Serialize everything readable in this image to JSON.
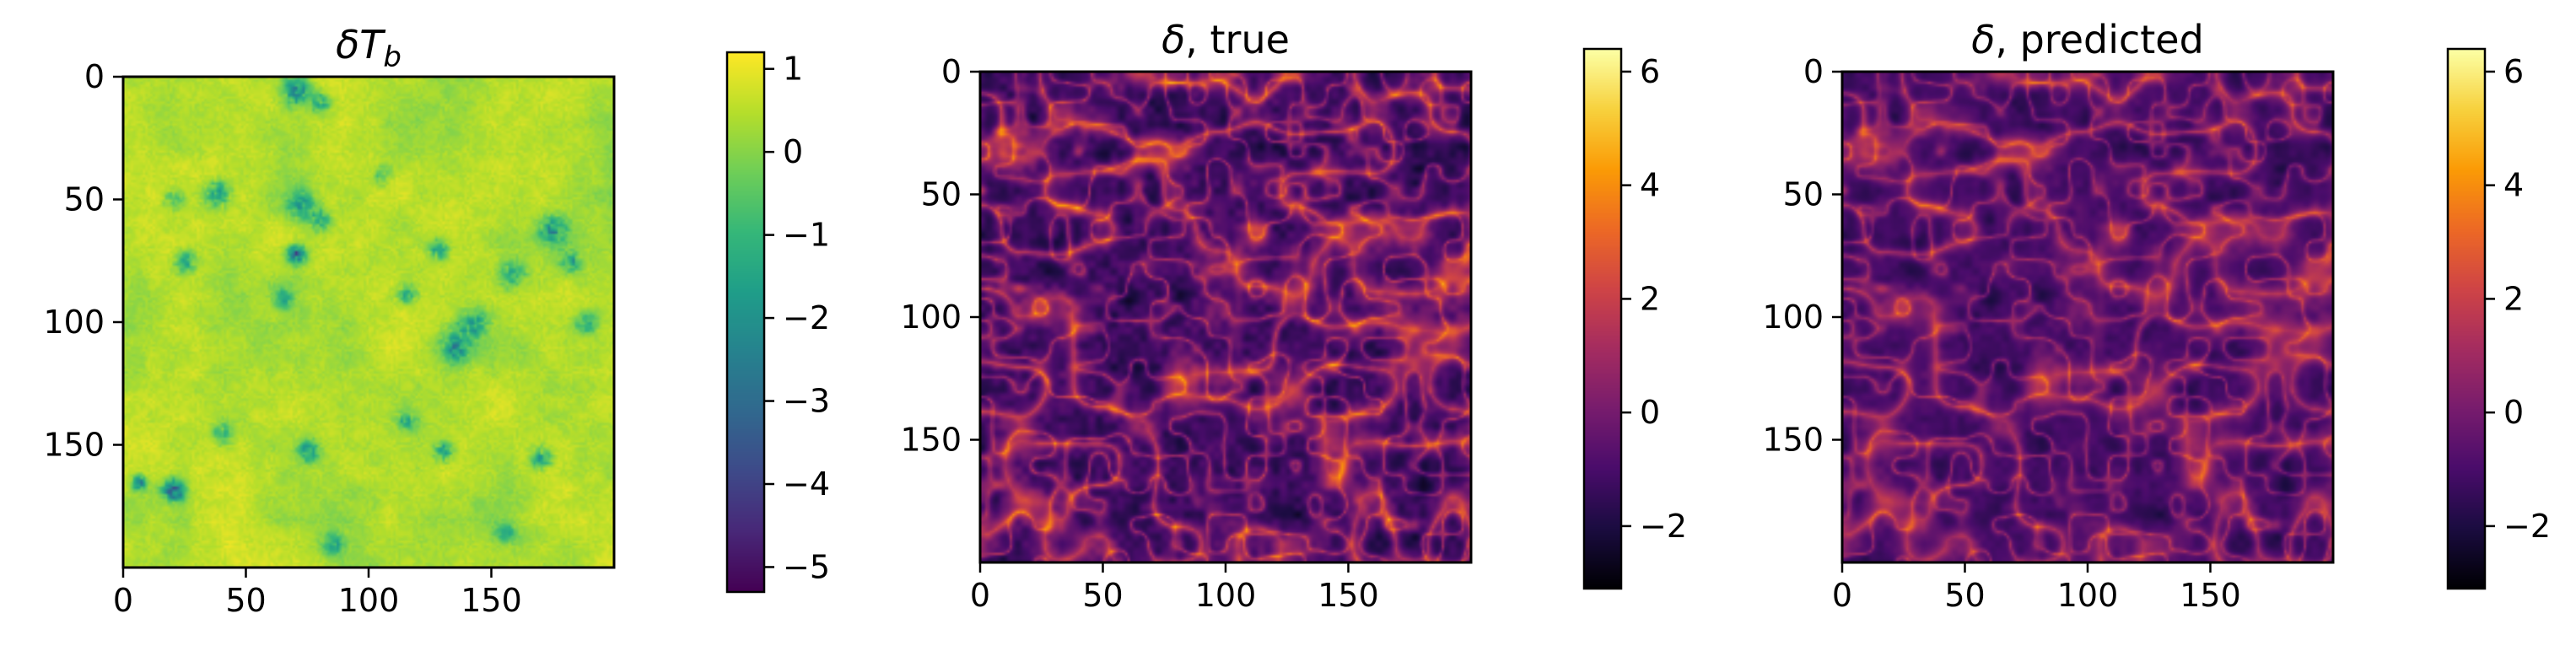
{
  "chart_data": [
    {
      "type": "heatmap",
      "title": "δT_b",
      "title_main": "δT",
      "title_sub": "b",
      "xlabel": "",
      "ylabel": "",
      "xlim": [
        0,
        200
      ],
      "ylim": [
        200,
        0
      ],
      "x_ticks": [
        0,
        50,
        100,
        150
      ],
      "y_ticks": [
        0,
        50,
        100,
        150
      ],
      "x_tick_labels": [
        "0",
        "50",
        "100",
        "150"
      ],
      "y_tick_labels": [
        "0",
        "50",
        "100",
        "150"
      ],
      "colormap": "viridis",
      "colorbar": {
        "range": [
          -5.3,
          1.2
        ],
        "ticks": [
          1,
          0,
          -1,
          -2,
          -3,
          -4,
          -5
        ],
        "tick_labels": [
          "1",
          "0",
          "−1",
          "−2",
          "−3",
          "−4",
          "−5"
        ]
      },
      "field": {
        "background_mean": 0.45,
        "noise_std": 0.22,
        "features": [
          {
            "x": 70,
            "y": 72,
            "amp": -5.0,
            "sigma": 2.5
          },
          {
            "x": 20,
            "y": 168,
            "amp": -4.6,
            "sigma": 3
          },
          {
            "x": 6,
            "y": 165,
            "amp": -3.5,
            "sigma": 2
          },
          {
            "x": 38,
            "y": 47,
            "amp": -2.5,
            "sigma": 4
          },
          {
            "x": 20,
            "y": 50,
            "amp": -2.0,
            "sigma": 3
          },
          {
            "x": 72,
            "y": 52,
            "amp": -2.6,
            "sigma": 4
          },
          {
            "x": 80,
            "y": 58,
            "amp": -2.2,
            "sigma": 3
          },
          {
            "x": 25,
            "y": 75,
            "amp": -2.6,
            "sigma": 3
          },
          {
            "x": 65,
            "y": 90,
            "amp": -2.2,
            "sigma": 3
          },
          {
            "x": 135,
            "y": 110,
            "amp": -3.2,
            "sigma": 4
          },
          {
            "x": 142,
            "y": 100,
            "amp": -2.8,
            "sigma": 4
          },
          {
            "x": 128,
            "y": 70,
            "amp": -2.4,
            "sigma": 3
          },
          {
            "x": 115,
            "y": 88,
            "amp": -2.3,
            "sigma": 3
          },
          {
            "x": 175,
            "y": 62,
            "amp": -3.0,
            "sigma": 4
          },
          {
            "x": 182,
            "y": 75,
            "amp": -2.6,
            "sigma": 3
          },
          {
            "x": 188,
            "y": 100,
            "amp": -2.2,
            "sigma": 3
          },
          {
            "x": 70,
            "y": 5,
            "amp": -3.0,
            "sigma": 4
          },
          {
            "x": 80,
            "y": 10,
            "amp": -2.4,
            "sigma": 3
          },
          {
            "x": 75,
            "y": 152,
            "amp": -2.8,
            "sigma": 3
          },
          {
            "x": 130,
            "y": 152,
            "amp": -2.6,
            "sigma": 3
          },
          {
            "x": 115,
            "y": 140,
            "amp": -2.4,
            "sigma": 3
          },
          {
            "x": 170,
            "y": 155,
            "amp": -2.4,
            "sigma": 3
          },
          {
            "x": 85,
            "y": 190,
            "amp": -2.2,
            "sigma": 3
          },
          {
            "x": 40,
            "y": 145,
            "amp": -2.0,
            "sigma": 3
          },
          {
            "x": 158,
            "y": 80,
            "amp": -1.8,
            "sigma": 4
          },
          {
            "x": 105,
            "y": 40,
            "amp": -1.6,
            "sigma": 3
          },
          {
            "x": 155,
            "y": 185,
            "amp": -1.8,
            "sigma": 3
          }
        ]
      }
    },
    {
      "type": "heatmap",
      "title": "δ, true",
      "xlabel": "",
      "ylabel": "",
      "xlim": [
        0,
        200
      ],
      "ylim": [
        200,
        0
      ],
      "x_ticks": [
        0,
        50,
        100,
        150
      ],
      "y_ticks": [
        0,
        50,
        100,
        150
      ],
      "x_tick_labels": [
        "0",
        "50",
        "100",
        "150"
      ],
      "y_tick_labels": [
        "0",
        "50",
        "100",
        "150"
      ],
      "colormap": "inferno",
      "colorbar": {
        "range": [
          -3.1,
          6.4
        ],
        "ticks": [
          6,
          4,
          2,
          0,
          -2
        ],
        "tick_labels": [
          "6",
          "4",
          "2",
          "0",
          "−2"
        ]
      },
      "field": {
        "seed": 7,
        "mean": -0.2,
        "contrast": 1.25
      }
    },
    {
      "type": "heatmap",
      "title": "δ, predicted",
      "xlabel": "",
      "ylabel": "",
      "xlim": [
        0,
        200
      ],
      "ylim": [
        200,
        0
      ],
      "x_ticks": [
        0,
        50,
        100,
        150
      ],
      "y_ticks": [
        0,
        50,
        100,
        150
      ],
      "x_tick_labels": [
        "0",
        "50",
        "100",
        "150"
      ],
      "y_tick_labels": [
        "0",
        "50",
        "100",
        "150"
      ],
      "colormap": "inferno",
      "colorbar": {
        "range": [
          -3.1,
          6.4
        ],
        "ticks": [
          6,
          4,
          2,
          0,
          -2
        ],
        "tick_labels": [
          "6",
          "4",
          "2",
          "0",
          "−2"
        ]
      },
      "field": {
        "seed": 7,
        "mean": -0.2,
        "contrast": 1.05,
        "smooth": true
      }
    }
  ]
}
